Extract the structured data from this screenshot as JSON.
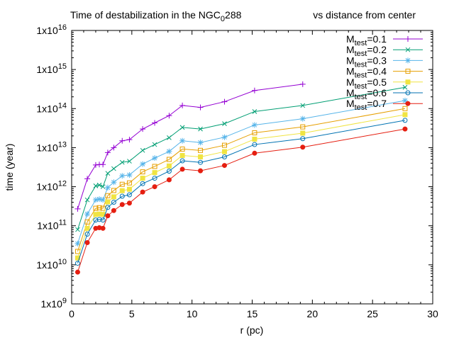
{
  "chart_data": {
    "type": "line",
    "title": {
      "left_prefix": "Time of destabilization in the NGC",
      "left_sub": "0",
      "left_suffix": "288",
      "right": "vs distance from center"
    },
    "xlabel": "r (pc)",
    "ylabel": "time (year)",
    "xlim": [
      0,
      30
    ],
    "ylim": [
      1000000000.0,
      1e+16
    ],
    "yscale": "log",
    "grid": false,
    "legend_position": "top-right",
    "x_ticks": [
      "0",
      "5",
      "10",
      "15",
      "20",
      "25",
      "30"
    ],
    "y_ticks": [
      {
        "base": "1x10",
        "exp": "9"
      },
      {
        "base": "1x10",
        "exp": "10"
      },
      {
        "base": "1x10",
        "exp": "11"
      },
      {
        "base": "1x10",
        "exp": "12"
      },
      {
        "base": "1x10",
        "exp": "13"
      },
      {
        "base": "1x10",
        "exp": "14"
      },
      {
        "base": "1x10",
        "exp": "15"
      },
      {
        "base": "1x10",
        "exp": "16"
      }
    ],
    "x": [
      0.5,
      1.3,
      2.0,
      2.3,
      2.6,
      3.0,
      3.5,
      4.2,
      4.8,
      5.9,
      6.9,
      8.1,
      9.2,
      10.7,
      12.7,
      15.2,
      19.2,
      27.7
    ],
    "series": [
      {
        "name_main": "M",
        "name_sub": "test",
        "name_suffix": "=0.1",
        "marker": "plus",
        "color": "#9400d3",
        "values": [
          270000000000.0,
          1600000000000.0,
          3600000000000.0,
          3700000000000.0,
          3700000000000.0,
          7500000000000.0,
          10000000000000.0,
          15000000000000.0,
          16000000000000.0,
          30000000000000.0,
          43000000000000.0,
          66000000000000.0,
          120000000000000.0,
          107000000000000.0,
          150000000000000.0,
          290000000000000.0,
          420000000000000.0,
          null
        ]
      },
      {
        "name_main": "M",
        "name_sub": "test",
        "name_suffix": "=0.2",
        "marker": "cross",
        "color": "#009e73",
        "values": [
          80000000000.0,
          460000000000.0,
          1050000000000.0,
          1100000000000.0,
          1000000000000.0,
          2200000000000.0,
          2900000000000.0,
          4200000000000.0,
          4500000000000.0,
          8500000000000.0,
          12000000000000.0,
          18000000000000.0,
          33000000000000.0,
          30000000000000.0,
          41000000000000.0,
          84000000000000.0,
          120000000000000.0,
          350000000000000.0
        ]
      },
      {
        "name_main": "M",
        "name_sub": "test",
        "name_suffix": "=0.3",
        "marker": "star",
        "color": "#56b4e9",
        "values": [
          35000000000.0,
          200000000000.0,
          460000000000.0,
          480000000000.0,
          460000000000.0,
          950000000000.0,
          1300000000000.0,
          1900000000000.0,
          2000000000000.0,
          3800000000000.0,
          5400000000000.0,
          8000000000000.0,
          15000000000000.0,
          13500000000000.0,
          18500000000000.0,
          38000000000000.0,
          55000000000000.0,
          160000000000000.0
        ]
      },
      {
        "name_main": "M",
        "name_sub": "test",
        "name_suffix": "=0.4",
        "marker": "open-square",
        "color": "#e69f00",
        "values": [
          22000000000.0,
          125000000000.0,
          280000000000.0,
          290000000000.0,
          280000000000.0,
          590000000000.0,
          800000000000.0,
          1150000000000.0,
          1250000000000.0,
          2400000000000.0,
          3300000000000.0,
          5000000000000.0,
          9200000000000.0,
          8500000000000.0,
          11500000000000.0,
          24000000000000.0,
          34000000000000.0,
          100000000000000.0
        ]
      },
      {
        "name_main": "M",
        "name_sub": "test",
        "name_suffix": "=0.5",
        "marker": "filled-square",
        "color": "#f0e442",
        "values": [
          15000000000.0,
          86000000000.0,
          195000000000.0,
          200000000000.0,
          195000000000.0,
          410000000000.0,
          550000000000.0,
          790000000000.0,
          860000000000.0,
          1650000000000.0,
          2300000000000.0,
          3400000000000.0,
          6300000000000.0,
          5800000000000.0,
          7900000000000.0,
          16500000000000.0,
          23500000000000.0,
          70000000000000.0
        ]
      },
      {
        "name_main": "M",
        "name_sub": "test",
        "name_suffix": "=0.6",
        "marker": "open-circle",
        "color": "#0072b2",
        "values": [
          11000000000.0,
          61000000000.0,
          140000000000.0,
          145000000000.0,
          140000000000.0,
          295000000000.0,
          400000000000.0,
          570000000000.0,
          620000000000.0,
          1200000000000.0,
          1650000000000.0,
          2500000000000.0,
          4600000000000.0,
          4200000000000.0,
          5800000000000.0,
          12000000000000.0,
          17000000000000.0,
          50000000000000.0
        ]
      },
      {
        "name_main": "M",
        "name_sub": "test",
        "name_suffix": "=0.7",
        "marker": "filled-circle",
        "color": "#e51e10",
        "values": [
          6500000000.0,
          37000000000.0,
          86000000000.0,
          89000000000.0,
          86000000000.0,
          180000000000.0,
          245000000000.0,
          350000000000.0,
          380000000000.0,
          730000000000.0,
          1000000000000.0,
          1500000000000.0,
          2800000000000.0,
          2550000000000.0,
          3500000000000.0,
          7200000000000.0,
          10300000000000.0,
          30000000000000.0
        ]
      }
    ]
  }
}
